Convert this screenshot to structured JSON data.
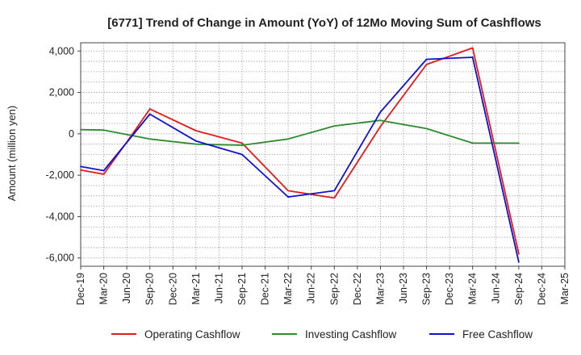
{
  "chart_data": {
    "type": "line",
    "title": "[6771]  Trend of Change in Amount (YoY) of 12Mo Moving Sum of Cashflows",
    "xlabel": "",
    "ylabel": "Amount (million yen)",
    "ylim": [
      -6400,
      4400
    ],
    "yticks": [
      -6000,
      -4000,
      -2000,
      0,
      2000,
      4000
    ],
    "ytick_labels": [
      "-6,000",
      "-4,000",
      "-2,000",
      "0",
      "2,000",
      "4,000"
    ],
    "categories": [
      "Dec-19",
      "Mar-20",
      "Jun-20",
      "Sep-20",
      "Dec-20",
      "Mar-21",
      "Jun-21",
      "Sep-21",
      "Dec-21",
      "Mar-22",
      "Jun-22",
      "Sep-22",
      "Dec-22",
      "Mar-23",
      "Jun-23",
      "Sep-23",
      "Dec-23",
      "Mar-24",
      "Jun-24",
      "Sep-24",
      "Dec-24",
      "Mar-25"
    ],
    "grid": true,
    "legend_position": "bottom",
    "series": [
      {
        "name": "Operating Cashflow",
        "color": "#e41a1c",
        "values": [
          -1750,
          -1950,
          -400,
          1200,
          null,
          150,
          null,
          -450,
          null,
          -2750,
          null,
          -3100,
          null,
          350,
          null,
          3350,
          null,
          4150,
          null,
          -5800,
          null,
          null
        ]
      },
      {
        "name": "Investing Cashflow",
        "color": "#2e8b2e",
        "values": [
          200,
          180,
          null,
          -250,
          null,
          -500,
          null,
          -550,
          null,
          -250,
          null,
          380,
          null,
          650,
          null,
          250,
          null,
          -450,
          null,
          -450,
          null,
          null
        ]
      },
      {
        "name": "Free Cashflow",
        "color": "#1010d0",
        "values": [
          -1580,
          -1780,
          null,
          950,
          null,
          -350,
          null,
          -1000,
          null,
          -3050,
          null,
          -2750,
          null,
          1050,
          null,
          3600,
          null,
          3700,
          null,
          -6200,
          null,
          null
        ]
      }
    ]
  }
}
